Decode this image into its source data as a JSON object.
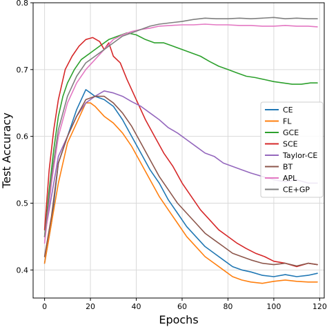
{
  "chart_data": {
    "type": "line",
    "title": "",
    "xlabel": "Epochs",
    "ylabel": "Test Accuracy",
    "xlim": [
      -5,
      122
    ],
    "ylim": [
      0.358,
      0.8
    ],
    "xticks": [
      0,
      20,
      40,
      60,
      80,
      100,
      120
    ],
    "yticks": [
      0.4,
      0.5,
      0.6,
      0.7,
      0.8
    ],
    "xtick_labels": [
      "0",
      "20",
      "40",
      "60",
      "80",
      "100",
      "120"
    ],
    "ytick_labels": [
      "0.4",
      "0.5",
      "0.6",
      "0.7",
      "0.8"
    ],
    "grid": true,
    "legend_position": "center-right",
    "series": [
      {
        "name": "CE",
        "color": "#1f77b4",
        "x": [
          0,
          3,
          6,
          10,
          14,
          18,
          20,
          22,
          26,
          30,
          34,
          38,
          42,
          46,
          50,
          54,
          58,
          62,
          66,
          70,
          74,
          78,
          82,
          86,
          90,
          95,
          100,
          105,
          110,
          115,
          119
        ],
        "y": [
          0.41,
          0.47,
          0.56,
          0.6,
          0.64,
          0.67,
          0.665,
          0.66,
          0.655,
          0.645,
          0.625,
          0.6,
          0.575,
          0.55,
          0.53,
          0.505,
          0.485,
          0.465,
          0.45,
          0.435,
          0.425,
          0.415,
          0.405,
          0.4,
          0.397,
          0.392,
          0.39,
          0.393,
          0.39,
          0.392,
          0.395
        ]
      },
      {
        "name": "FL",
        "color": "#ff7f0e",
        "x": [
          0,
          3,
          6,
          10,
          14,
          18,
          20,
          22,
          26,
          30,
          34,
          38,
          42,
          46,
          50,
          54,
          58,
          62,
          66,
          70,
          74,
          78,
          82,
          86,
          90,
          95,
          100,
          105,
          110,
          115,
          119
        ],
        "y": [
          0.41,
          0.47,
          0.53,
          0.59,
          0.62,
          0.65,
          0.65,
          0.645,
          0.63,
          0.62,
          0.605,
          0.585,
          0.56,
          0.535,
          0.51,
          0.49,
          0.47,
          0.45,
          0.435,
          0.42,
          0.41,
          0.4,
          0.39,
          0.385,
          0.382,
          0.38,
          0.383,
          0.385,
          0.383,
          0.382,
          0.382
        ]
      },
      {
        "name": "GCE",
        "color": "#2ca02c",
        "x": [
          0,
          2,
          4,
          6,
          8,
          10,
          13,
          16,
          20,
          24,
          28,
          32,
          36,
          40,
          44,
          48,
          52,
          56,
          60,
          64,
          68,
          72,
          76,
          80,
          84,
          88,
          92,
          96,
          100,
          104,
          108,
          112,
          116,
          119
        ],
        "y": [
          0.45,
          0.52,
          0.58,
          0.63,
          0.66,
          0.68,
          0.7,
          0.715,
          0.725,
          0.735,
          0.745,
          0.75,
          0.755,
          0.752,
          0.745,
          0.74,
          0.74,
          0.735,
          0.73,
          0.725,
          0.72,
          0.712,
          0.705,
          0.7,
          0.695,
          0.69,
          0.688,
          0.685,
          0.682,
          0.68,
          0.678,
          0.678,
          0.68,
          0.68
        ]
      },
      {
        "name": "SCE",
        "color": "#d62728",
        "x": [
          0,
          2,
          4,
          6,
          9,
          12,
          15,
          18,
          21,
          24,
          26,
          28,
          30,
          33,
          36,
          40,
          44,
          48,
          52,
          56,
          60,
          64,
          68,
          72,
          76,
          80,
          84,
          88,
          92,
          96,
          100,
          105,
          110,
          115,
          119
        ],
        "y": [
          0.46,
          0.55,
          0.61,
          0.655,
          0.7,
          0.72,
          0.735,
          0.745,
          0.748,
          0.742,
          0.73,
          0.74,
          0.72,
          0.71,
          0.685,
          0.655,
          0.625,
          0.6,
          0.575,
          0.555,
          0.53,
          0.51,
          0.49,
          0.475,
          0.46,
          0.45,
          0.44,
          0.432,
          0.425,
          0.42,
          0.413,
          0.41,
          0.405,
          0.41,
          0.408
        ]
      },
      {
        "name": "Taylor-CE",
        "color": "#9467bd",
        "x": [
          0,
          3,
          6,
          10,
          14,
          18,
          22,
          26,
          30,
          34,
          38,
          42,
          46,
          50,
          54,
          58,
          62,
          66,
          70,
          74,
          78,
          82,
          86,
          90,
          95,
          100,
          105,
          110,
          115,
          119
        ],
        "y": [
          0.45,
          0.51,
          0.57,
          0.6,
          0.63,
          0.65,
          0.66,
          0.668,
          0.665,
          0.66,
          0.652,
          0.645,
          0.635,
          0.625,
          0.613,
          0.605,
          0.595,
          0.585,
          0.575,
          0.57,
          0.56,
          0.555,
          0.55,
          0.545,
          0.54,
          0.535,
          0.532,
          0.535,
          0.53,
          0.53
        ]
      },
      {
        "name": "BT",
        "color": "#8c564b",
        "x": [
          0,
          3,
          6,
          10,
          14,
          18,
          22,
          26,
          30,
          34,
          38,
          42,
          46,
          50,
          54,
          58,
          62,
          66,
          70,
          74,
          78,
          82,
          86,
          90,
          95,
          100,
          105,
          110,
          115,
          119
        ],
        "y": [
          0.42,
          0.48,
          0.56,
          0.6,
          0.63,
          0.655,
          0.66,
          0.66,
          0.65,
          0.635,
          0.615,
          0.59,
          0.565,
          0.54,
          0.52,
          0.5,
          0.485,
          0.47,
          0.455,
          0.445,
          0.435,
          0.425,
          0.42,
          0.415,
          0.41,
          0.408,
          0.41,
          0.406,
          0.41,
          0.408
        ]
      },
      {
        "name": "APL",
        "color": "#e377c2",
        "x": [
          0,
          3,
          6,
          10,
          14,
          18,
          22,
          26,
          30,
          34,
          38,
          42,
          46,
          50,
          55,
          60,
          65,
          70,
          75,
          80,
          85,
          90,
          95,
          100,
          105,
          110,
          115,
          119
        ],
        "y": [
          0.44,
          0.53,
          0.6,
          0.65,
          0.68,
          0.7,
          0.715,
          0.73,
          0.745,
          0.752,
          0.757,
          0.76,
          0.762,
          0.765,
          0.766,
          0.767,
          0.767,
          0.768,
          0.767,
          0.767,
          0.766,
          0.766,
          0.765,
          0.765,
          0.766,
          0.765,
          0.765,
          0.764
        ]
      },
      {
        "name": "CE+GP",
        "color": "#7f7f7f",
        "x": [
          0,
          3,
          6,
          10,
          14,
          18,
          22,
          26,
          30,
          34,
          38,
          42,
          46,
          50,
          55,
          60,
          65,
          70,
          75,
          80,
          85,
          90,
          95,
          100,
          105,
          110,
          115,
          119
        ],
        "y": [
          0.45,
          0.54,
          0.61,
          0.66,
          0.69,
          0.71,
          0.72,
          0.73,
          0.74,
          0.75,
          0.755,
          0.76,
          0.765,
          0.768,
          0.77,
          0.772,
          0.775,
          0.777,
          0.776,
          0.776,
          0.777,
          0.776,
          0.777,
          0.778,
          0.776,
          0.777,
          0.776,
          0.776
        ]
      }
    ]
  }
}
